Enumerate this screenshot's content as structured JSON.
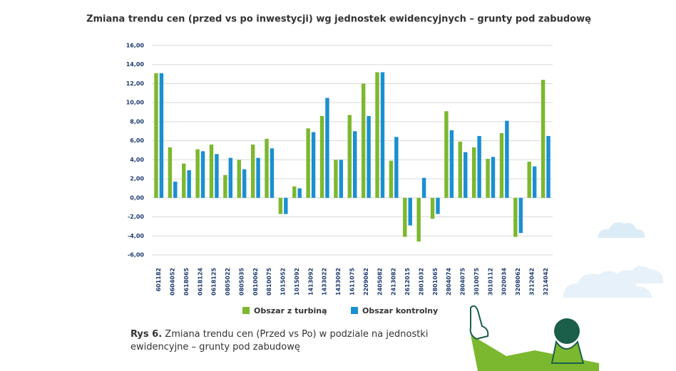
{
  "chart_data": {
    "type": "bar",
    "title": "Zmiana trendu cen (przed vs po inwestycji) wg jednostek ewidencyjnych – grunty pod zabudowę",
    "categories": [
      "601182",
      "0604052",
      "0618065",
      "0618124",
      "0618125",
      "0805022",
      "0805035",
      "0810062",
      "0810075",
      "1015052",
      "1015092",
      "1413092",
      "1433022",
      "1433092",
      "1611075",
      "2209062",
      "2405082",
      "2413082",
      "2612015",
      "2801032",
      "2801065",
      "2804074",
      "2804075",
      "3010075",
      "3010112",
      "3020034",
      "3208062",
      "3212042",
      "3214042"
    ],
    "series": [
      {
        "name": "Obszar z turbiną",
        "color": "#7cb82f",
        "values": [
          13.1,
          5.3,
          3.6,
          5.1,
          5.6,
          2.4,
          4.0,
          5.6,
          6.2,
          -1.7,
          1.2,
          7.3,
          8.6,
          4.0,
          8.7,
          12.0,
          13.2,
          3.9,
          -4.1,
          -4.6,
          -2.2,
          9.1,
          5.9,
          5.3,
          4.1,
          6.8,
          -4.1,
          3.8,
          12.4
        ]
      },
      {
        "name": "Obszar kontrolny",
        "color": "#1a8fd1",
        "values": [
          13.1,
          1.7,
          2.9,
          4.9,
          4.6,
          4.2,
          3.0,
          4.2,
          5.2,
          -1.7,
          1.0,
          6.9,
          10.5,
          4.0,
          7.0,
          8.6,
          13.2,
          6.4,
          -2.9,
          2.1,
          -1.7,
          7.1,
          4.8,
          6.5,
          4.3,
          8.1,
          -3.7,
          3.3,
          6.5
        ]
      }
    ],
    "ylim": [
      -6,
      16
    ],
    "yticks": [
      {
        "value": -6,
        "label": "-6,00"
      },
      {
        "value": -4,
        "label": "-4,00"
      },
      {
        "value": -2,
        "label": "-2,00"
      },
      {
        "value": 0,
        "label": "0,00"
      },
      {
        "value": 2,
        "label": "2,00"
      },
      {
        "value": 4,
        "label": "4,00"
      },
      {
        "value": 6,
        "label": "6,00"
      },
      {
        "value": 8,
        "label": "8,00"
      },
      {
        "value": 10,
        "label": "10,00"
      },
      {
        "value": 12,
        "label": "12,00"
      },
      {
        "value": 14,
        "label": "14,00"
      },
      {
        "value": 16,
        "label": "16,00"
      }
    ],
    "grid": true
  },
  "caption": {
    "label": "Rys 6.",
    "text": "Zmiana trendu cen (Przed vs Po) w podziale na jednostki ewidencyjne – grunty pod zabudowę"
  }
}
